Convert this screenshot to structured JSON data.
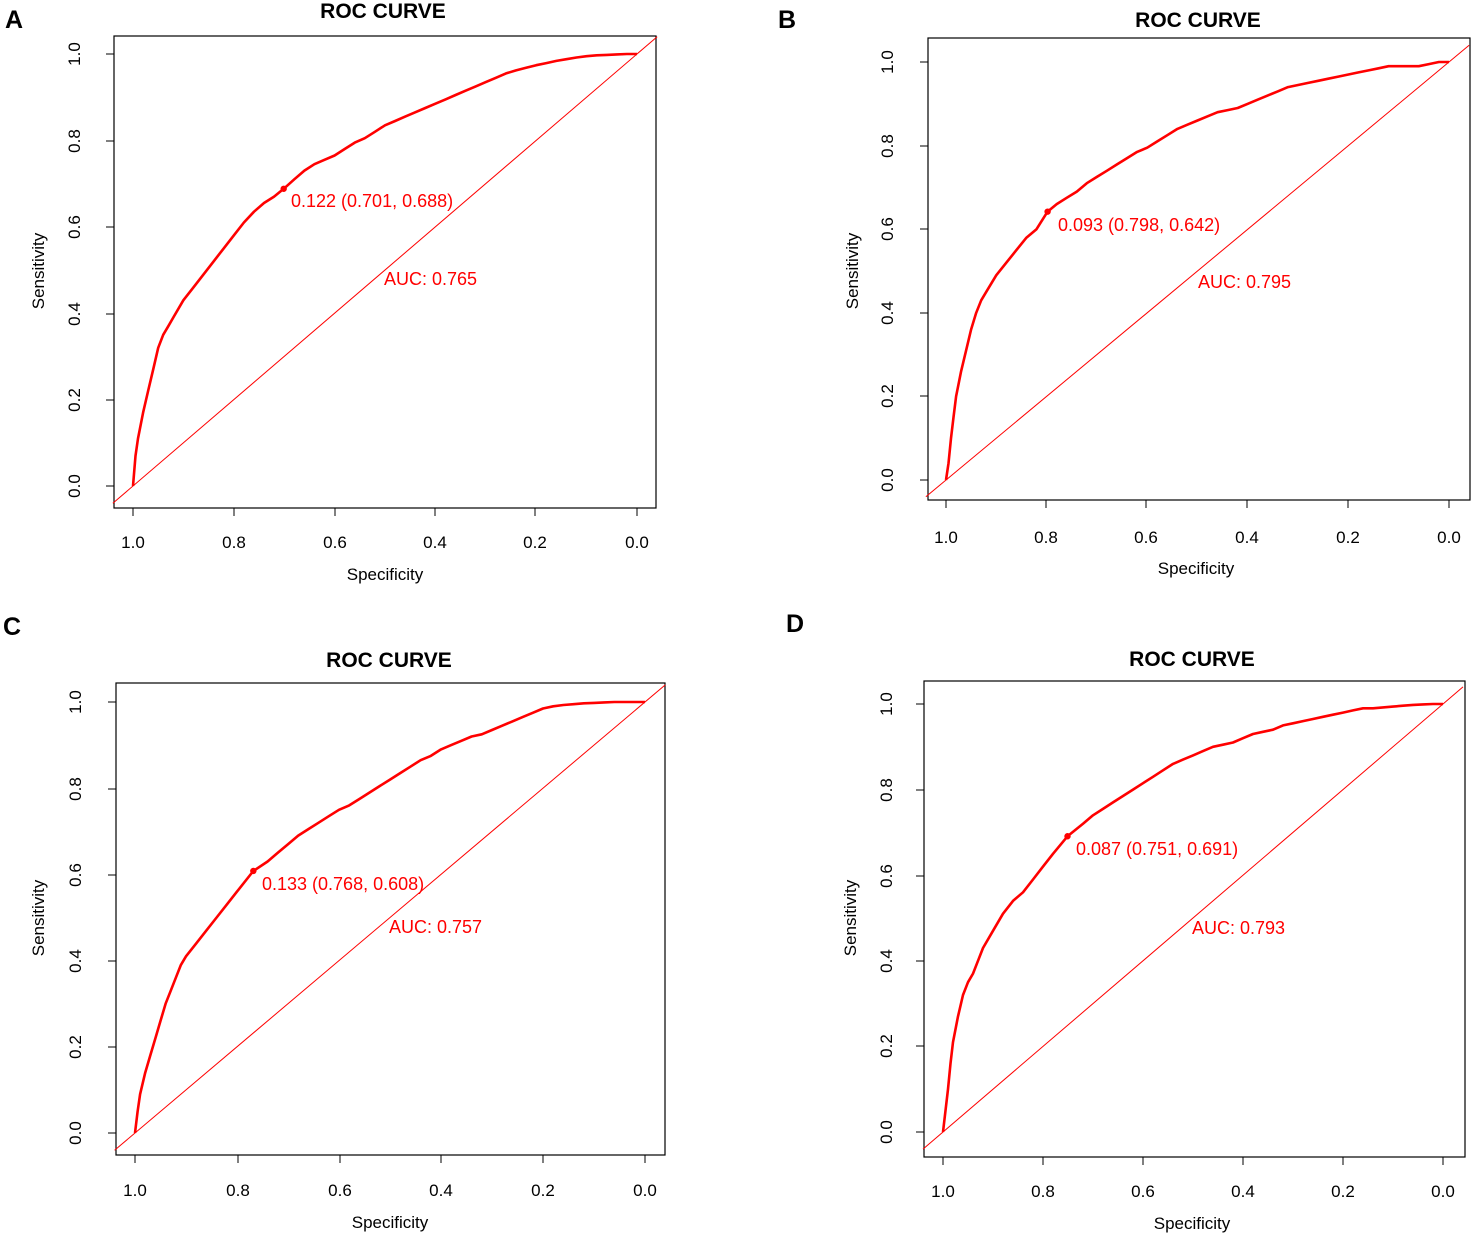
{
  "chart_data": [
    {
      "panel": "A",
      "type": "line",
      "title": "ROC CURVE",
      "xlabel": "Specificity",
      "ylabel": "Sensitivity",
      "xlim": [
        1.0,
        0.0
      ],
      "ylim": [
        0.0,
        1.0
      ],
      "xticks": [
        "1.0",
        "0.8",
        "0.6",
        "0.4",
        "0.2",
        "0.0"
      ],
      "yticks": [
        "0.0",
        "0.2",
        "0.4",
        "0.6",
        "0.8",
        "1.0"
      ],
      "threshold_label": "0.122 (0.701, 0.688)",
      "threshold_point": {
        "specificity": 0.701,
        "sensitivity": 0.688
      },
      "auc_label": "AUC: 0.765",
      "series": [
        {
          "name": "ROC",
          "color": "#ff0000",
          "specificity": [
            1.0,
            0.995,
            0.99,
            0.98,
            0.97,
            0.96,
            0.95,
            0.94,
            0.93,
            0.92,
            0.9,
            0.88,
            0.86,
            0.84,
            0.82,
            0.8,
            0.78,
            0.76,
            0.74,
            0.72,
            0.701,
            0.68,
            0.66,
            0.64,
            0.62,
            0.6,
            0.58,
            0.56,
            0.54,
            0.52,
            0.5,
            0.48,
            0.46,
            0.44,
            0.42,
            0.4,
            0.38,
            0.36,
            0.34,
            0.32,
            0.3,
            0.28,
            0.26,
            0.24,
            0.22,
            0.2,
            0.18,
            0.16,
            0.14,
            0.12,
            0.1,
            0.08,
            0.06,
            0.04,
            0.02,
            0.0
          ],
          "sensitivity": [
            0.0,
            0.07,
            0.11,
            0.17,
            0.22,
            0.27,
            0.32,
            0.35,
            0.37,
            0.39,
            0.43,
            0.46,
            0.49,
            0.52,
            0.55,
            0.58,
            0.61,
            0.635,
            0.655,
            0.67,
            0.688,
            0.71,
            0.73,
            0.745,
            0.755,
            0.765,
            0.78,
            0.795,
            0.805,
            0.82,
            0.835,
            0.845,
            0.855,
            0.865,
            0.875,
            0.885,
            0.895,
            0.905,
            0.915,
            0.925,
            0.935,
            0.945,
            0.955,
            0.962,
            0.968,
            0.974,
            0.979,
            0.984,
            0.988,
            0.992,
            0.995,
            0.997,
            0.998,
            0.999,
            1.0,
            1.0
          ]
        }
      ]
    },
    {
      "panel": "B",
      "type": "line",
      "title": "ROC CURVE",
      "xlabel": "Specificity",
      "ylabel": "Sensitivity",
      "xlim": [
        1.0,
        0.0
      ],
      "ylim": [
        0.0,
        1.0
      ],
      "xticks": [
        "1.0",
        "0.8",
        "0.6",
        "0.4",
        "0.2",
        "0.0"
      ],
      "yticks": [
        "0.0",
        "0.2",
        "0.4",
        "0.6",
        "0.8",
        "1.0"
      ],
      "threshold_label": "0.093 (0.798, 0.642)",
      "threshold_point": {
        "specificity": 0.798,
        "sensitivity": 0.642
      },
      "auc_label": "AUC: 0.795",
      "series": [
        {
          "name": "ROC",
          "color": "#ff0000",
          "specificity": [
            1.0,
            0.995,
            0.99,
            0.985,
            0.98,
            0.97,
            0.96,
            0.95,
            0.94,
            0.93,
            0.92,
            0.9,
            0.88,
            0.86,
            0.84,
            0.82,
            0.798,
            0.78,
            0.76,
            0.74,
            0.72,
            0.7,
            0.68,
            0.66,
            0.64,
            0.62,
            0.6,
            0.58,
            0.56,
            0.54,
            0.52,
            0.5,
            0.48,
            0.46,
            0.44,
            0.42,
            0.4,
            0.38,
            0.36,
            0.34,
            0.32,
            0.3,
            0.28,
            0.26,
            0.24,
            0.22,
            0.2,
            0.18,
            0.16,
            0.14,
            0.12,
            0.1,
            0.08,
            0.06,
            0.04,
            0.02,
            0.0
          ],
          "sensitivity": [
            0.0,
            0.04,
            0.1,
            0.15,
            0.2,
            0.26,
            0.31,
            0.36,
            0.4,
            0.43,
            0.45,
            0.49,
            0.52,
            0.55,
            0.58,
            0.6,
            0.642,
            0.66,
            0.675,
            0.69,
            0.71,
            0.725,
            0.74,
            0.755,
            0.77,
            0.785,
            0.795,
            0.81,
            0.825,
            0.84,
            0.85,
            0.86,
            0.87,
            0.88,
            0.885,
            0.89,
            0.9,
            0.91,
            0.92,
            0.93,
            0.94,
            0.945,
            0.95,
            0.955,
            0.96,
            0.965,
            0.97,
            0.975,
            0.98,
            0.985,
            0.99,
            0.99,
            0.99,
            0.99,
            0.995,
            1.0,
            1.0
          ]
        }
      ]
    },
    {
      "panel": "C",
      "type": "line",
      "title": "ROC CURVE",
      "xlabel": "Specificity",
      "ylabel": "Sensitivity",
      "xlim": [
        1.0,
        0.0
      ],
      "ylim": [
        0.0,
        1.0
      ],
      "xticks": [
        "1.0",
        "0.8",
        "0.6",
        "0.4",
        "0.2",
        "0.0"
      ],
      "yticks": [
        "0.0",
        "0.2",
        "0.4",
        "0.6",
        "0.8",
        "1.0"
      ],
      "threshold_label": "0.133 (0.768, 0.608)",
      "threshold_point": {
        "specificity": 0.768,
        "sensitivity": 0.608
      },
      "auc_label": "AUC: 0.757",
      "series": [
        {
          "name": "ROC",
          "color": "#ff0000",
          "specificity": [
            1.0,
            0.995,
            0.99,
            0.98,
            0.97,
            0.96,
            0.95,
            0.94,
            0.93,
            0.92,
            0.91,
            0.9,
            0.88,
            0.86,
            0.84,
            0.82,
            0.8,
            0.768,
            0.74,
            0.72,
            0.7,
            0.68,
            0.66,
            0.64,
            0.62,
            0.6,
            0.58,
            0.56,
            0.54,
            0.52,
            0.5,
            0.48,
            0.46,
            0.44,
            0.42,
            0.4,
            0.38,
            0.36,
            0.34,
            0.32,
            0.3,
            0.28,
            0.26,
            0.24,
            0.22,
            0.2,
            0.18,
            0.16,
            0.14,
            0.12,
            0.1,
            0.08,
            0.06,
            0.04,
            0.02,
            0.0
          ],
          "sensitivity": [
            0.0,
            0.05,
            0.09,
            0.14,
            0.18,
            0.22,
            0.26,
            0.3,
            0.33,
            0.36,
            0.39,
            0.41,
            0.44,
            0.47,
            0.5,
            0.53,
            0.56,
            0.608,
            0.63,
            0.65,
            0.67,
            0.69,
            0.705,
            0.72,
            0.735,
            0.75,
            0.76,
            0.775,
            0.79,
            0.805,
            0.82,
            0.835,
            0.85,
            0.865,
            0.875,
            0.89,
            0.9,
            0.91,
            0.92,
            0.925,
            0.935,
            0.945,
            0.955,
            0.965,
            0.975,
            0.985,
            0.99,
            0.993,
            0.995,
            0.997,
            0.998,
            0.999,
            1.0,
            1.0,
            1.0,
            1.0
          ]
        }
      ]
    },
    {
      "panel": "D",
      "type": "line",
      "title": "ROC CURVE",
      "xlabel": "Specificity",
      "ylabel": "Sensitivity",
      "xlim": [
        1.0,
        0.0
      ],
      "ylim": [
        0.0,
        1.0
      ],
      "xticks": [
        "1.0",
        "0.8",
        "0.6",
        "0.4",
        "0.2",
        "0.0"
      ],
      "yticks": [
        "0.0",
        "0.2",
        "0.4",
        "0.6",
        "0.8",
        "1.0"
      ],
      "threshold_label": "0.087 (0.751, 0.691)",
      "threshold_point": {
        "specificity": 0.751,
        "sensitivity": 0.691
      },
      "auc_label": "AUC: 0.793",
      "series": [
        {
          "name": "ROC",
          "color": "#ff0000",
          "specificity": [
            1.0,
            0.995,
            0.99,
            0.985,
            0.98,
            0.97,
            0.96,
            0.95,
            0.94,
            0.93,
            0.92,
            0.9,
            0.88,
            0.86,
            0.84,
            0.82,
            0.8,
            0.78,
            0.751,
            0.72,
            0.7,
            0.68,
            0.66,
            0.64,
            0.62,
            0.6,
            0.58,
            0.56,
            0.54,
            0.52,
            0.5,
            0.48,
            0.46,
            0.44,
            0.42,
            0.4,
            0.38,
            0.36,
            0.34,
            0.32,
            0.3,
            0.28,
            0.26,
            0.24,
            0.22,
            0.2,
            0.18,
            0.16,
            0.14,
            0.12,
            0.1,
            0.08,
            0.06,
            0.04,
            0.02,
            0.0
          ],
          "sensitivity": [
            0.0,
            0.05,
            0.1,
            0.16,
            0.21,
            0.27,
            0.32,
            0.35,
            0.37,
            0.4,
            0.43,
            0.47,
            0.51,
            0.54,
            0.56,
            0.59,
            0.62,
            0.65,
            0.691,
            0.72,
            0.74,
            0.755,
            0.77,
            0.785,
            0.8,
            0.815,
            0.83,
            0.845,
            0.86,
            0.87,
            0.88,
            0.89,
            0.9,
            0.905,
            0.91,
            0.92,
            0.93,
            0.935,
            0.94,
            0.95,
            0.955,
            0.96,
            0.965,
            0.97,
            0.975,
            0.98,
            0.985,
            0.99,
            0.99,
            0.992,
            0.994,
            0.996,
            0.998,
            0.999,
            1.0,
            1.0
          ]
        }
      ]
    }
  ],
  "panel_letters": [
    "A",
    "B",
    "C",
    "D"
  ],
  "colors": {
    "curve": "#ff0000",
    "diagonal": "#ff0000",
    "annotation": "#ff0000",
    "axis": "#000000"
  }
}
